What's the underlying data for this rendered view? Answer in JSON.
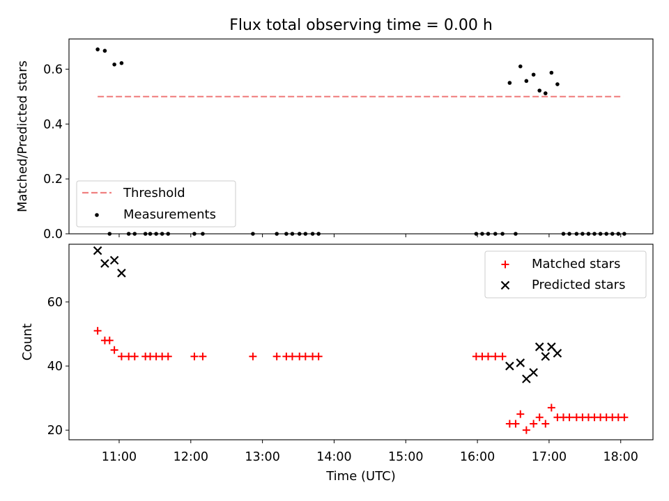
{
  "chart_data": [
    {
      "type": "scatter",
      "title": "Flux total observing time = 0.00 h",
      "ylabel": "Matched/Predicted stars",
      "xlim": [
        "10:18",
        "18:27"
      ],
      "ylim": [
        0,
        0.71
      ],
      "yticks": [
        "0.0",
        "0.2",
        "0.4",
        "0.6"
      ],
      "legend_position": "lower-left",
      "threshold": {
        "name": "Threshold",
        "value": 0.5,
        "x_range": [
          "10:42",
          "18:02"
        ],
        "color": "#f08080"
      },
      "series": [
        {
          "name": "Measurements",
          "color": "#000000",
          "points": [
            [
              "10:42",
              0.672
            ],
            [
              "10:48",
              0.667
            ],
            [
              "10:56",
              0.617
            ],
            [
              "11:02",
              0.622
            ],
            [
              "10:52",
              0.0
            ],
            [
              "11:08",
              0.0
            ],
            [
              "11:13",
              0.0
            ],
            [
              "11:22",
              0.0
            ],
            [
              "11:26",
              0.0
            ],
            [
              "11:31",
              0.0
            ],
            [
              "11:36",
              0.0
            ],
            [
              "11:41",
              0.0
            ],
            [
              "12:03",
              0.0
            ],
            [
              "12:10",
              0.0
            ],
            [
              "12:52",
              0.0
            ],
            [
              "13:12",
              0.0
            ],
            [
              "13:20",
              0.0
            ],
            [
              "13:25",
              0.0
            ],
            [
              "13:31",
              0.0
            ],
            [
              "13:36",
              0.0
            ],
            [
              "13:42",
              0.0
            ],
            [
              "13:47",
              0.0
            ],
            [
              "15:59",
              0.0
            ],
            [
              "16:04",
              0.0
            ],
            [
              "16:09",
              0.0
            ],
            [
              "16:15",
              0.0
            ],
            [
              "16:21",
              0.0
            ],
            [
              "16:32",
              0.0
            ],
            [
              "16:27",
              0.55
            ],
            [
              "16:36",
              0.61
            ],
            [
              "16:41",
              0.557
            ],
            [
              "16:47",
              0.58
            ],
            [
              "16:52",
              0.522
            ],
            [
              "16:57",
              0.512
            ],
            [
              "17:02",
              0.587
            ],
            [
              "17:07",
              0.545
            ],
            [
              "17:12",
              0.0
            ],
            [
              "17:17",
              0.0
            ],
            [
              "17:23",
              0.0
            ],
            [
              "17:28",
              0.0
            ],
            [
              "17:33",
              0.0
            ],
            [
              "17:38",
              0.0
            ],
            [
              "17:43",
              0.0
            ],
            [
              "17:48",
              0.0
            ],
            [
              "17:53",
              0.0
            ],
            [
              "17:58",
              0.0
            ],
            [
              "18:03",
              0.0
            ]
          ]
        }
      ]
    },
    {
      "type": "scatter",
      "xlabel": "Time (UTC)",
      "ylabel": "Count",
      "xlim": [
        "10:18",
        "18:27"
      ],
      "ylim": [
        17,
        78
      ],
      "xticks": [
        "11:00",
        "12:00",
        "13:00",
        "14:00",
        "15:00",
        "16:00",
        "17:00",
        "18:00"
      ],
      "yticks": [
        "20",
        "40",
        "60"
      ],
      "legend_position": "upper-right",
      "series": [
        {
          "name": "Matched stars",
          "marker": "plus",
          "color": "#ff0000",
          "points": [
            [
              "10:42",
              51
            ],
            [
              "10:48",
              48
            ],
            [
              "10:52",
              48
            ],
            [
              "10:56",
              45
            ],
            [
              "11:02",
              43
            ],
            [
              "11:08",
              43
            ],
            [
              "11:13",
              43
            ],
            [
              "11:22",
              43
            ],
            [
              "11:26",
              43
            ],
            [
              "11:31",
              43
            ],
            [
              "11:36",
              43
            ],
            [
              "11:41",
              43
            ],
            [
              "12:03",
              43
            ],
            [
              "12:10",
              43
            ],
            [
              "12:52",
              43
            ],
            [
              "13:12",
              43
            ],
            [
              "13:20",
              43
            ],
            [
              "13:25",
              43
            ],
            [
              "13:31",
              43
            ],
            [
              "13:36",
              43
            ],
            [
              "13:42",
              43
            ],
            [
              "13:47",
              43
            ],
            [
              "15:59",
              43
            ],
            [
              "16:04",
              43
            ],
            [
              "16:09",
              43
            ],
            [
              "16:15",
              43
            ],
            [
              "16:21",
              43
            ],
            [
              "16:27",
              22
            ],
            [
              "16:32",
              22
            ],
            [
              "16:36",
              25
            ],
            [
              "16:41",
              20
            ],
            [
              "16:47",
              22
            ],
            [
              "16:52",
              24
            ],
            [
              "16:57",
              22
            ],
            [
              "17:02",
              27
            ],
            [
              "17:07",
              24
            ],
            [
              "17:12",
              24
            ],
            [
              "17:17",
              24
            ],
            [
              "17:23",
              24
            ],
            [
              "17:28",
              24
            ],
            [
              "17:33",
              24
            ],
            [
              "17:38",
              24
            ],
            [
              "17:43",
              24
            ],
            [
              "17:48",
              24
            ],
            [
              "17:53",
              24
            ],
            [
              "17:58",
              24
            ],
            [
              "18:03",
              24
            ]
          ]
        },
        {
          "name": "Predicted stars",
          "marker": "x",
          "color": "#000000",
          "points": [
            [
              "10:42",
              76
            ],
            [
              "10:48",
              72
            ],
            [
              "10:56",
              73
            ],
            [
              "11:02",
              69
            ],
            [
              "16:27",
              40
            ],
            [
              "16:36",
              41
            ],
            [
              "16:41",
              36
            ],
            [
              "16:47",
              38
            ],
            [
              "16:52",
              46
            ],
            [
              "16:57",
              43
            ],
            [
              "17:02",
              46
            ],
            [
              "17:07",
              44
            ]
          ]
        }
      ]
    }
  ]
}
